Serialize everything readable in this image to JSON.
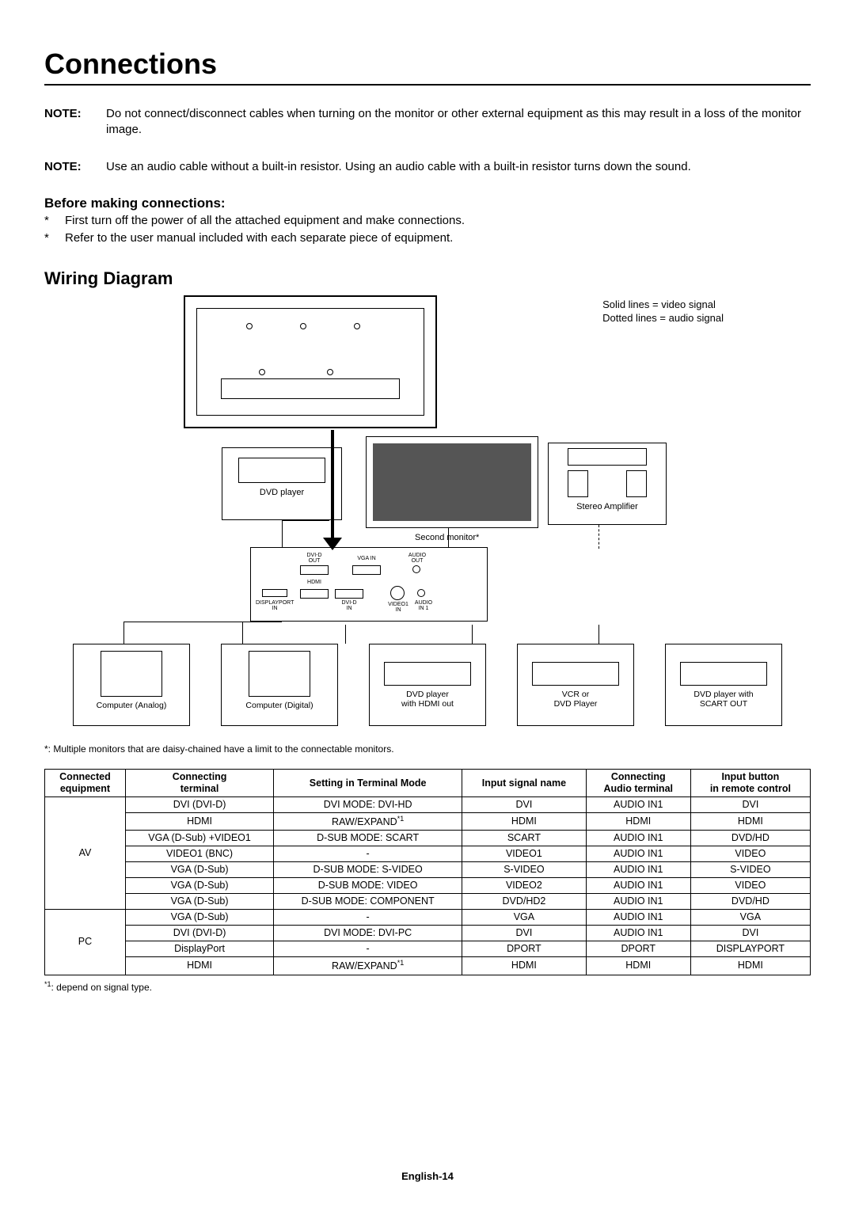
{
  "title": "Connections",
  "notes": [
    {
      "label": "NOTE:",
      "text": "Do not connect/disconnect cables when turning on the monitor or other external equipment as this may result in a loss of the monitor image."
    },
    {
      "label": "NOTE:",
      "text": "Use an audio cable without a built-in resistor. Using an audio cable with a built-in resistor turns down the sound."
    }
  ],
  "before_heading": "Before making connections:",
  "before_bullets": [
    "First turn off the power of all the attached equipment and make connections.",
    "Refer to the user manual included with each separate piece of equipment."
  ],
  "wiring_heading": "Wiring Diagram",
  "legend": {
    "solid": "Solid lines = video signal",
    "dotted": "Dotted lines = audio signal"
  },
  "diagram_labels": {
    "dvd_player": "DVD player",
    "second_monitor": "Second monitor*",
    "stereo_amp": "Stereo Amplifier",
    "computer_analog": "Computer (Analog)",
    "computer_digital": "Computer (Digital)",
    "dvd_hdmi": "DVD player\nwith HDMI out",
    "vcr": "VCR or\nDVD Player",
    "dvd_scart": "DVD player with\nSCART OUT"
  },
  "io_ports": {
    "dvi_d_out": "DVI-D\nOUT",
    "vga_in": "VGA IN",
    "audio_out": "AUDIO\nOUT",
    "hdmi": "HDMI",
    "displayport_in": "DISPLAYPORT\nIN",
    "dvi_d_in": "DVI-D\nIN",
    "video1_in": "VIDEO1\nIN",
    "audio_in1": "AUDIO\nIN 1"
  },
  "footnote_star": "*: Multiple monitors that are daisy-chained have a limit to the connectable monitors.",
  "table": {
    "headers": [
      "Connected\nequipment",
      "Connecting\nterminal",
      "Setting in Terminal Mode",
      "Input signal name",
      "Connecting\nAudio terminal",
      "Input button\nin remote control"
    ],
    "groups": [
      {
        "equipment": "AV",
        "rows": [
          [
            "DVI (DVI-D)",
            "DVI MODE: DVI-HD",
            "DVI",
            "AUDIO IN1",
            "DVI"
          ],
          [
            "HDMI",
            "RAW/EXPAND*1",
            "HDMI",
            "HDMI",
            "HDMI"
          ],
          [
            "VGA (D-Sub) +VIDEO1",
            "D-SUB MODE: SCART",
            "SCART",
            "AUDIO IN1",
            "DVD/HD"
          ],
          [
            "VIDEO1 (BNC)",
            "-",
            "VIDEO1",
            "AUDIO IN1",
            "VIDEO"
          ],
          [
            "VGA (D-Sub)",
            "D-SUB MODE: S-VIDEO",
            "S-VIDEO",
            "AUDIO IN1",
            "S-VIDEO"
          ],
          [
            "VGA (D-Sub)",
            "D-SUB MODE: VIDEO",
            "VIDEO2",
            "AUDIO IN1",
            "VIDEO"
          ],
          [
            "VGA (D-Sub)",
            "D-SUB MODE: COMPONENT",
            "DVD/HD2",
            "AUDIO IN1",
            "DVD/HD"
          ]
        ]
      },
      {
        "equipment": "PC",
        "rows": [
          [
            "VGA (D-Sub)",
            "-",
            "VGA",
            "AUDIO IN1",
            "VGA"
          ],
          [
            "DVI (DVI-D)",
            "DVI MODE: DVI-PC",
            "DVI",
            "AUDIO IN1",
            "DVI"
          ],
          [
            "DisplayPort",
            "-",
            "DPORT",
            "DPORT",
            "DISPLAYPORT"
          ],
          [
            "HDMI",
            "RAW/EXPAND*1",
            "HDMI",
            "HDMI",
            "HDMI"
          ]
        ]
      }
    ]
  },
  "footnote_1": "*1: depend on signal type.",
  "page_footer": "English-14",
  "colors": {
    "text": "#000000",
    "background": "#ffffff",
    "border": "#000000"
  }
}
